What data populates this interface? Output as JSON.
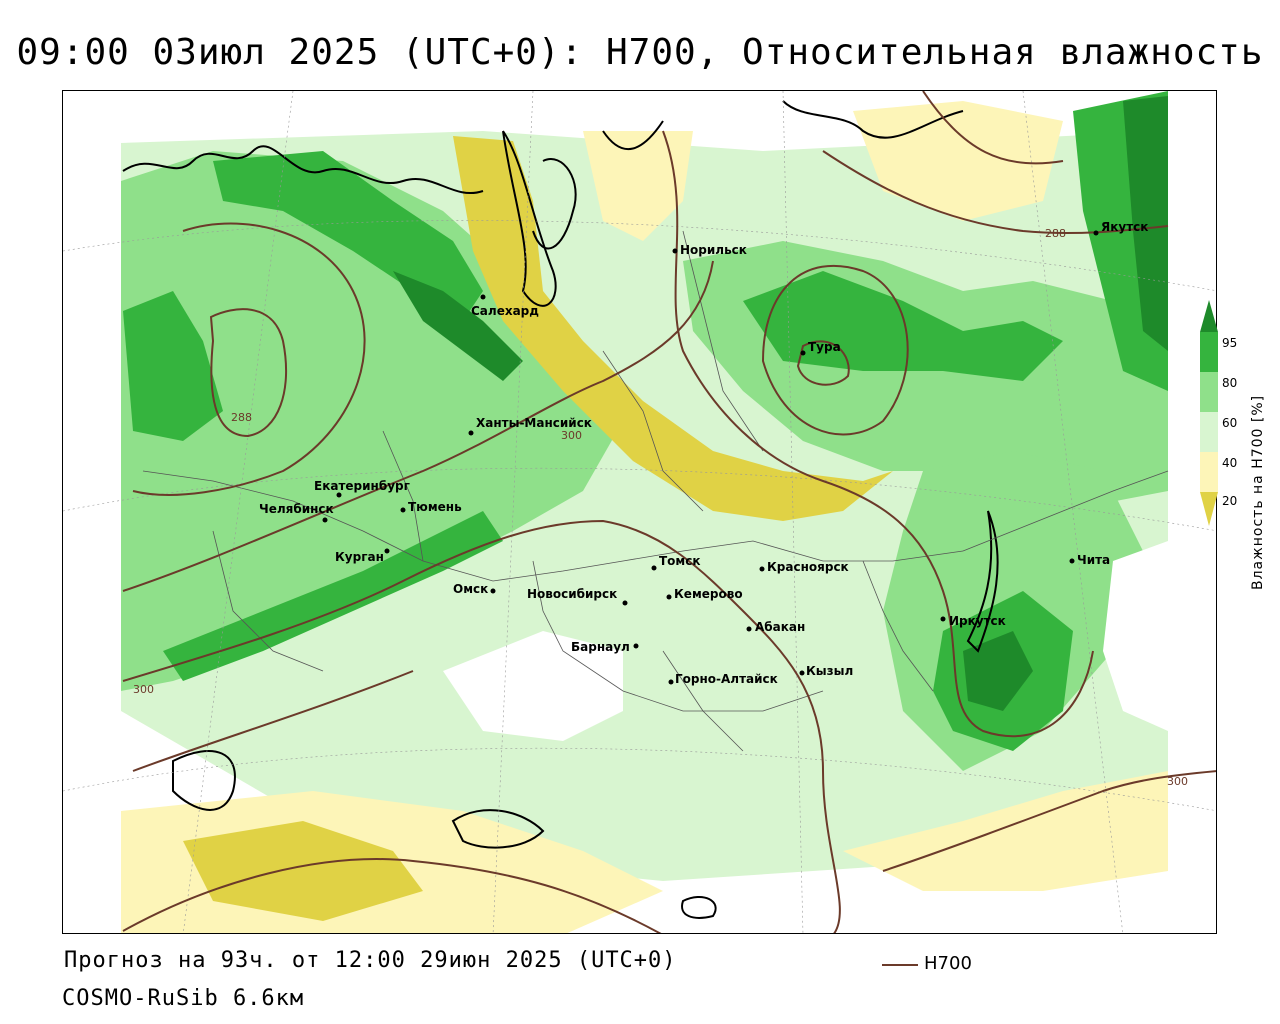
{
  "title": "09:00 03июл 2025 (UTC+0): H700, Относительная влажность",
  "footer": {
    "forecast_line": "Прогноз на 93ч. от 12:00 29июн 2025 (UTC+0)",
    "model_line": "COSMO-RuSib 6.6км",
    "legend_label": "H700"
  },
  "colorbar": {
    "title": "Влажность на H700 [%]",
    "ticks": [
      "95",
      "80",
      "60",
      "40",
      "20"
    ],
    "colors": {
      "over95": "#1e8a2a",
      "c80_95": "#35b43e",
      "c60_80": "#8fe08a",
      "c40_60": "#d8f5d0",
      "c20_40": "#fdf5b8",
      "under20": "#e0d245"
    }
  },
  "isohypse_color": "#6b3a2a",
  "isohypse_labels": [
    "288",
    "288",
    "300",
    "300",
    "300"
  ],
  "cities": [
    {
      "name": "Норильск"
    },
    {
      "name": "Салехард"
    },
    {
      "name": "Тура"
    },
    {
      "name": "Якутск"
    },
    {
      "name": "Ханты-Мансийск"
    },
    {
      "name": "Екатеринбург"
    },
    {
      "name": "Тюмень"
    },
    {
      "name": "Челябинск"
    },
    {
      "name": "Курган"
    },
    {
      "name": "Омск"
    },
    {
      "name": "Новосибирск"
    },
    {
      "name": "Томск"
    },
    {
      "name": "Кемерово"
    },
    {
      "name": "Красноярск"
    },
    {
      "name": "Абакан"
    },
    {
      "name": "Барнаул"
    },
    {
      "name": "Горно-Алтайск"
    },
    {
      "name": "Кызыл"
    },
    {
      "name": "Иркутск"
    },
    {
      "name": "Чита"
    }
  ]
}
